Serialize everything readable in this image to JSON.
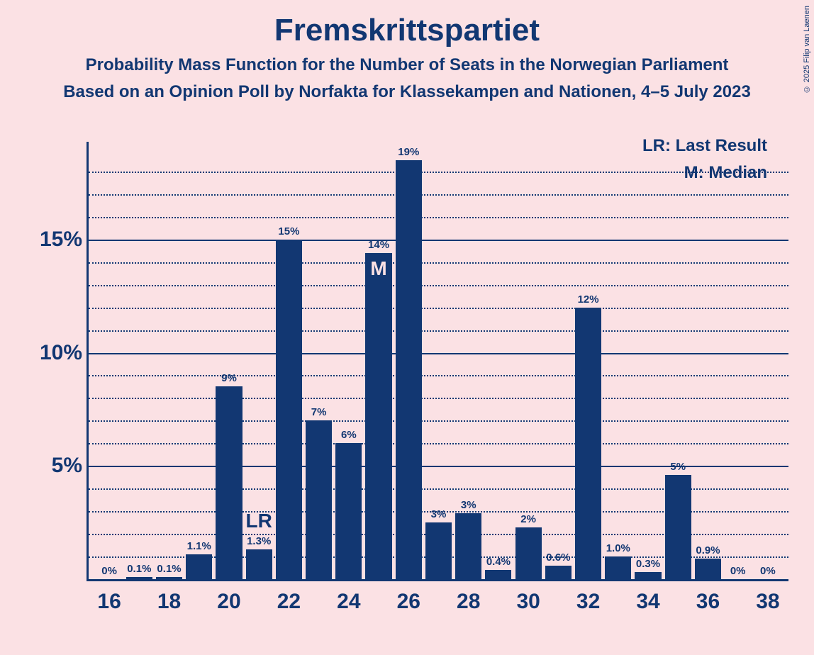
{
  "title": "Fremskrittspartiet",
  "subtitle1": "Probability Mass Function for the Number of Seats in the Norwegian Parliament",
  "subtitle2": "Based on an Opinion Poll by Norfakta for Klassekampen and Nationen, 4–5 July 2023",
  "legend": {
    "lr": "LR: Last Result",
    "m": "M: Median"
  },
  "copyright": "© 2025 Filip van Laenen",
  "chart": {
    "type": "bar",
    "background_color": "#fbe1e4",
    "bar_color": "#123772",
    "text_color": "#123772",
    "axis_color": "#123772",
    "ylim": [
      0,
      19
    ],
    "y_major_ticks": [
      5,
      10,
      15
    ],
    "y_minor_step": 1,
    "x_tick_labels": [
      16,
      18,
      20,
      22,
      24,
      26,
      28,
      30,
      32,
      34,
      36,
      38
    ],
    "bar_width_ratio": 0.88,
    "bars": [
      {
        "x": 16,
        "value": 0,
        "label": "0%"
      },
      {
        "x": 17,
        "value": 0.1,
        "label": "0.1%"
      },
      {
        "x": 18,
        "value": 0.1,
        "label": "0.1%"
      },
      {
        "x": 19,
        "value": 1.1,
        "label": "1.1%"
      },
      {
        "x": 20,
        "value": 8.5,
        "label": "9%"
      },
      {
        "x": 21,
        "value": 1.3,
        "label": "1.3%",
        "marker": "LR"
      },
      {
        "x": 22,
        "value": 15,
        "label": "15%"
      },
      {
        "x": 23,
        "value": 7,
        "label": "7%"
      },
      {
        "x": 24,
        "value": 6,
        "label": "6%"
      },
      {
        "x": 25,
        "value": 14.4,
        "label": "14%",
        "marker": "M"
      },
      {
        "x": 26,
        "value": 18.5,
        "label": "19%"
      },
      {
        "x": 27,
        "value": 2.5,
        "label": "3%"
      },
      {
        "x": 28,
        "value": 2.9,
        "label": "3%"
      },
      {
        "x": 29,
        "value": 0.4,
        "label": "0.4%"
      },
      {
        "x": 30,
        "value": 2.3,
        "label": "2%"
      },
      {
        "x": 31,
        "value": 0.6,
        "label": "0.6%"
      },
      {
        "x": 32,
        "value": 12,
        "label": "12%"
      },
      {
        "x": 33,
        "value": 1.0,
        "label": "1.0%"
      },
      {
        "x": 34,
        "value": 0.3,
        "label": "0.3%"
      },
      {
        "x": 35,
        "value": 4.6,
        "label": "5%"
      },
      {
        "x": 36,
        "value": 0.9,
        "label": "0.9%"
      },
      {
        "x": 37,
        "value": 0,
        "label": "0%"
      },
      {
        "x": 38,
        "value": 0,
        "label": "0%"
      }
    ],
    "title_fontsize": 44,
    "subtitle_fontsize": 24,
    "axis_label_fontsize": 30,
    "bar_label_fontsize": 15
  }
}
